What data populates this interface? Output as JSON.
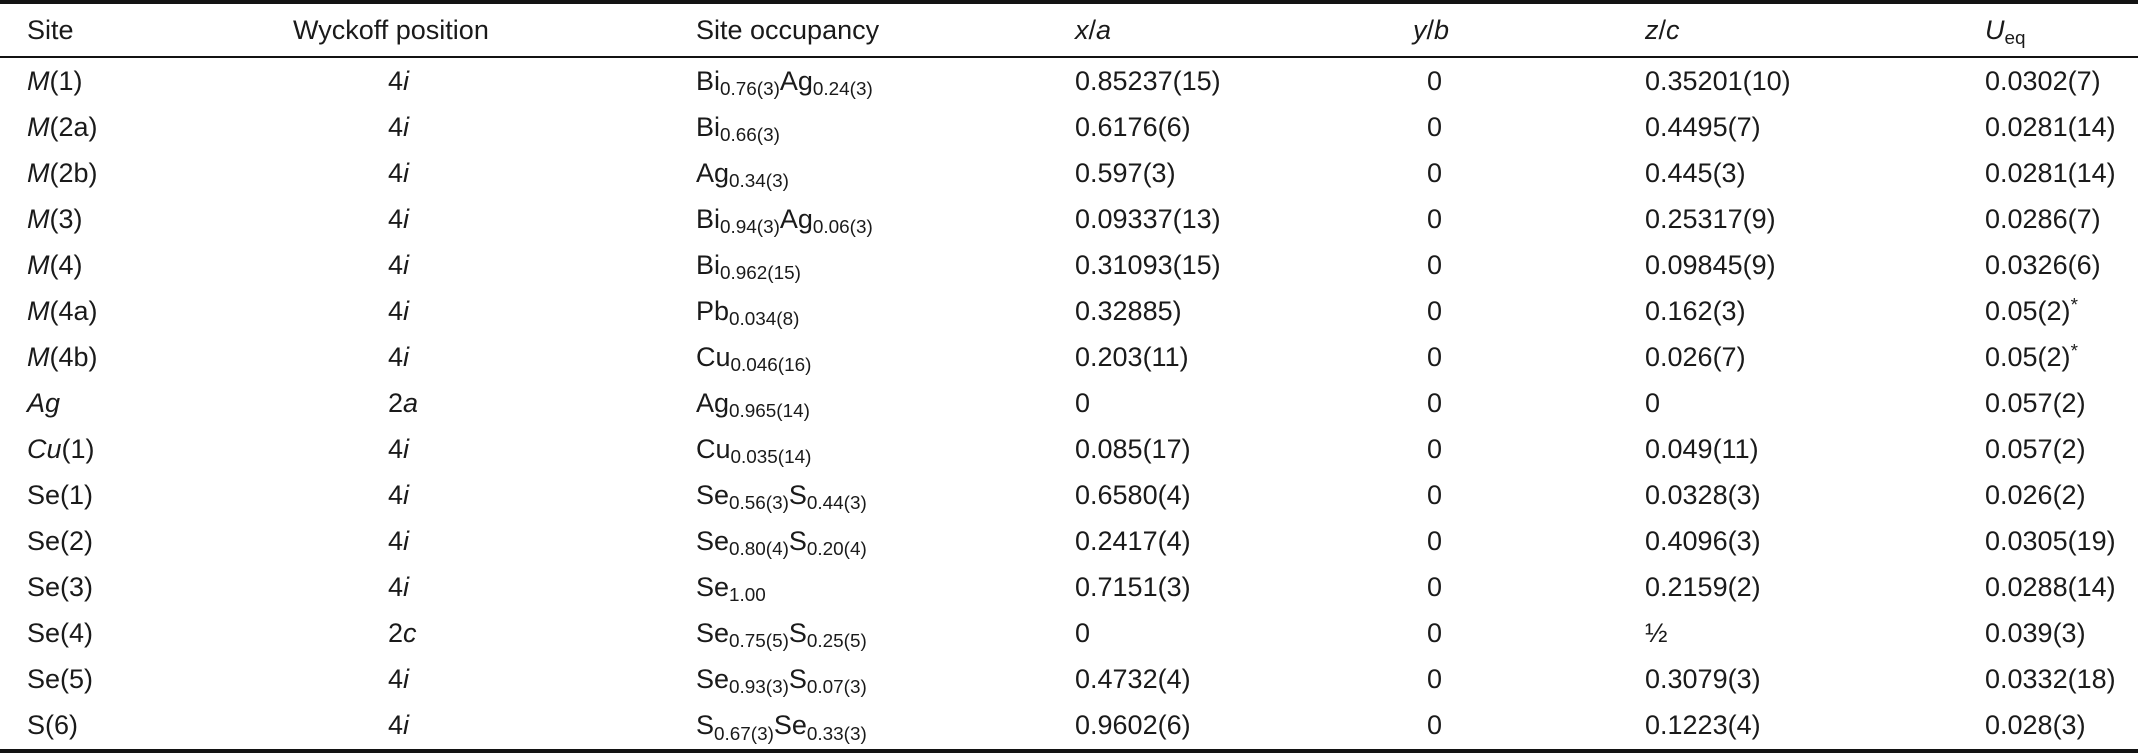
{
  "colors": {
    "text": "#1a1a1a",
    "rule": "#131313",
    "background": "#ffffff"
  },
  "table": {
    "columns": [
      {
        "key": "site",
        "label": "Site"
      },
      {
        "key": "wyckoff",
        "label": "Wyckoff position"
      },
      {
        "key": "occupancy",
        "label": "Site occupancy"
      },
      {
        "key": "xa",
        "label": "~x~/~a~"
      },
      {
        "key": "yb",
        "label": "~y~/~b~"
      },
      {
        "key": "zc",
        "label": "~z~/~c~"
      },
      {
        "key": "ueq",
        "label": "~U~_{eq}"
      }
    ],
    "rows": [
      {
        "site": "~M~(1)",
        "wyckoff": "4~i~",
        "occupancy": "Bi_{0.76(3)}Ag_{0.24(3)}",
        "xa": "0.85237(15)",
        "yb": "0",
        "zc": "0.35201(10)",
        "ueq": "0.0302(7)"
      },
      {
        "site": "~M~(2a)",
        "wyckoff": "4~i~",
        "occupancy": "Bi_{0.66(3)}",
        "xa": "0.6176(6)",
        "yb": "0",
        "zc": "0.4495(7)",
        "ueq": "0.0281(14)"
      },
      {
        "site": "~M~(2b)",
        "wyckoff": "4~i~",
        "occupancy": "Ag_{0.34(3)}",
        "xa": "0.597(3)",
        "yb": "0",
        "zc": "0.445(3)",
        "ueq": "0.0281(14)"
      },
      {
        "site": "~M~(3)",
        "wyckoff": "4~i~",
        "occupancy": "Bi_{0.94(3)}Ag_{0.06(3)}",
        "xa": "0.09337(13)",
        "yb": "0",
        "zc": "0.25317(9)",
        "ueq": "0.0286(7)"
      },
      {
        "site": "~M~(4)",
        "wyckoff": "4~i~",
        "occupancy": "Bi_{0.962(15)}",
        "xa": "0.31093(15)",
        "yb": "0",
        "zc": "0.09845(9)",
        "ueq": "0.0326(6)"
      },
      {
        "site": "~M~(4a)",
        "wyckoff": "4~i~",
        "occupancy": "Pb_{0.034(8)}",
        "xa": "0.32885)",
        "yb": "0",
        "zc": "0.162(3)",
        "ueq": "0.05(2)^{*}"
      },
      {
        "site": "~M~(4b)",
        "wyckoff": "4~i~",
        "occupancy": "Cu_{0.046(16)}",
        "xa": "0.203(11)",
        "yb": "0",
        "zc": "0.026(7)",
        "ueq": "0.05(2)^{*}"
      },
      {
        "site": "~Ag~",
        "wyckoff": "2~a~",
        "occupancy": "Ag_{0.965(14)}",
        "xa": "0",
        "yb": "0",
        "zc": "0",
        "ueq": "0.057(2)"
      },
      {
        "site": "~Cu~(1)",
        "wyckoff": "4~i~",
        "occupancy": "Cu_{0.035(14)}",
        "xa": "0.085(17)",
        "yb": "0",
        "zc": "0.049(11)",
        "ueq": "0.057(2)"
      },
      {
        "site": "Se(1)",
        "wyckoff": "4~i~",
        "occupancy": "Se_{0.56(3)}S_{0.44(3)}",
        "xa": "0.6580(4)",
        "yb": "0",
        "zc": "0.0328(3)",
        "ueq": "0.026(2)"
      },
      {
        "site": "Se(2)",
        "wyckoff": "4~i~",
        "occupancy": "Se_{0.80(4)}S_{0.20(4)}",
        "xa": "0.2417(4)",
        "yb": "0",
        "zc": "0.4096(3)",
        "ueq": "0.0305(19)"
      },
      {
        "site": "Se(3)",
        "wyckoff": "4~i~",
        "occupancy": "Se_{1.00}",
        "xa": "0.7151(3)",
        "yb": "0",
        "zc": "0.2159(2)",
        "ueq": "0.0288(14)"
      },
      {
        "site": "Se(4)",
        "wyckoff": "2~c~",
        "occupancy": "Se_{0.75(5)}S_{0.25(5)}",
        "xa": "0",
        "yb": "0",
        "zc": "½",
        "ueq": "0.039(3)"
      },
      {
        "site": "Se(5)",
        "wyckoff": "4~i~",
        "occupancy": "Se_{0.93(3)}S_{0.07(3)}",
        "xa": "0.4732(4)",
        "yb": "0",
        "zc": "0.3079(3)",
        "ueq": "0.0332(18)"
      },
      {
        "site": "S(6)",
        "wyckoff": "4~i~",
        "occupancy": "S_{0.67(3)}Se_{0.33(3)}",
        "xa": "0.9602(6)",
        "yb": "0",
        "zc": "0.1223(4)",
        "ueq": "0.028(3)"
      }
    ]
  }
}
